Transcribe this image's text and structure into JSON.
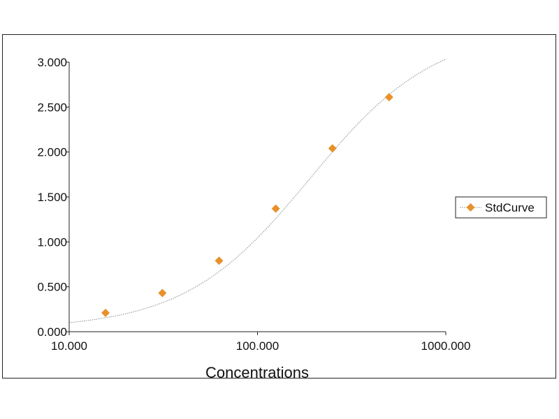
{
  "chart_data": {
    "type": "scatter",
    "title": "",
    "xlabel": "Concentrations",
    "ylabel": "",
    "x_scale": "log",
    "xlim": [
      10,
      1000
    ],
    "ylim": [
      0,
      3
    ],
    "x_ticks": [
      10,
      100,
      1000
    ],
    "x_tick_labels": [
      "10.000",
      "100.000",
      "1000.000"
    ],
    "y_ticks": [
      0,
      0.5,
      1,
      1.5,
      2,
      2.5,
      3
    ],
    "y_tick_labels": [
      "0.000",
      "0.500",
      "1.000",
      "1.500",
      "2.000",
      "2.500",
      "3.000"
    ],
    "grid": false,
    "legend_position": "right",
    "series": [
      {
        "name": "StdCurve",
        "marker": "diamond",
        "color": "#e8912a",
        "x": [
          15.6,
          31.25,
          62.5,
          125,
          250,
          500
        ],
        "y": [
          0.21,
          0.43,
          0.79,
          1.37,
          2.04,
          2.61
        ]
      }
    ],
    "fit_curve": {
      "type": "4PL",
      "color": "#8a8a8a",
      "bottom": 0.03,
      "top": 3.38,
      "ec50": 190,
      "hill": 1.3,
      "x_range": [
        10,
        1000
      ]
    }
  }
}
